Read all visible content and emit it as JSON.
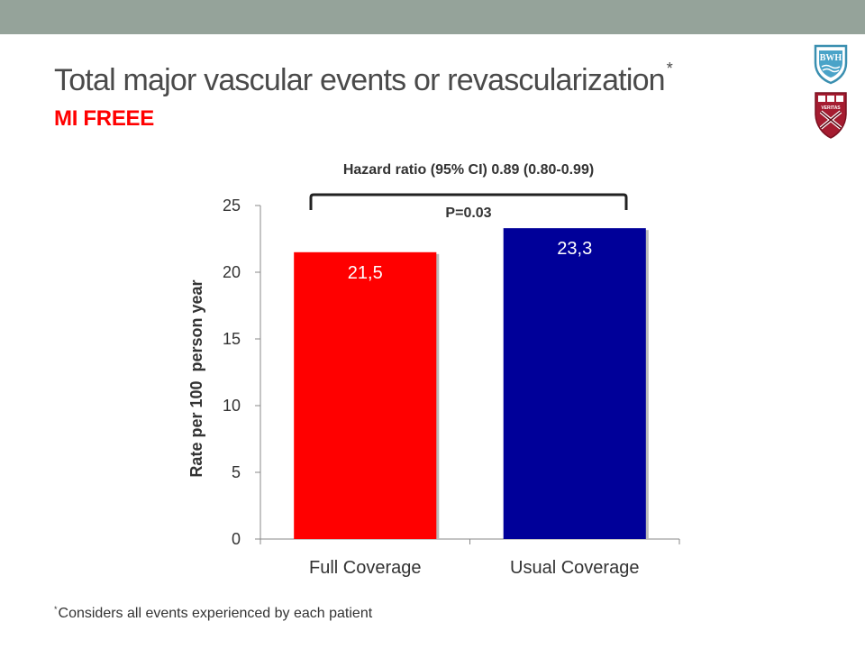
{
  "slide": {
    "title": "Total major vascular events or revascularization",
    "title_marker": "*",
    "subtitle": "MI FREEE",
    "footnote_marker": "*",
    "footnote": "Considers all events experienced by each patient",
    "logo_bwh_text": "BWH",
    "logo_harvard_text": "VERITAS",
    "colors": {
      "top_band": "#95a39a",
      "title": "#4a4a4a",
      "subtitle": "#ff0000"
    }
  },
  "chart_data": {
    "type": "bar",
    "categories": [
      "Full Coverage",
      "Usual Coverage"
    ],
    "values": [
      21.5,
      23.3
    ],
    "value_labels": [
      "21,5",
      "23,3"
    ],
    "bar_colors": [
      "#ff0000",
      "#000099"
    ],
    "ylabel": "Rate per 100  person year",
    "ylim": [
      0,
      25
    ],
    "yticks": [
      0,
      5,
      10,
      15,
      20,
      25
    ],
    "ytick_labels": [
      "0",
      "5",
      "10",
      "15",
      "20",
      "25"
    ],
    "grid": false,
    "annotations": {
      "hazard_ratio": "Hazard ratio (95% CI) 0.89 (0.80-0.99)",
      "p_value": "P=0.03"
    }
  }
}
